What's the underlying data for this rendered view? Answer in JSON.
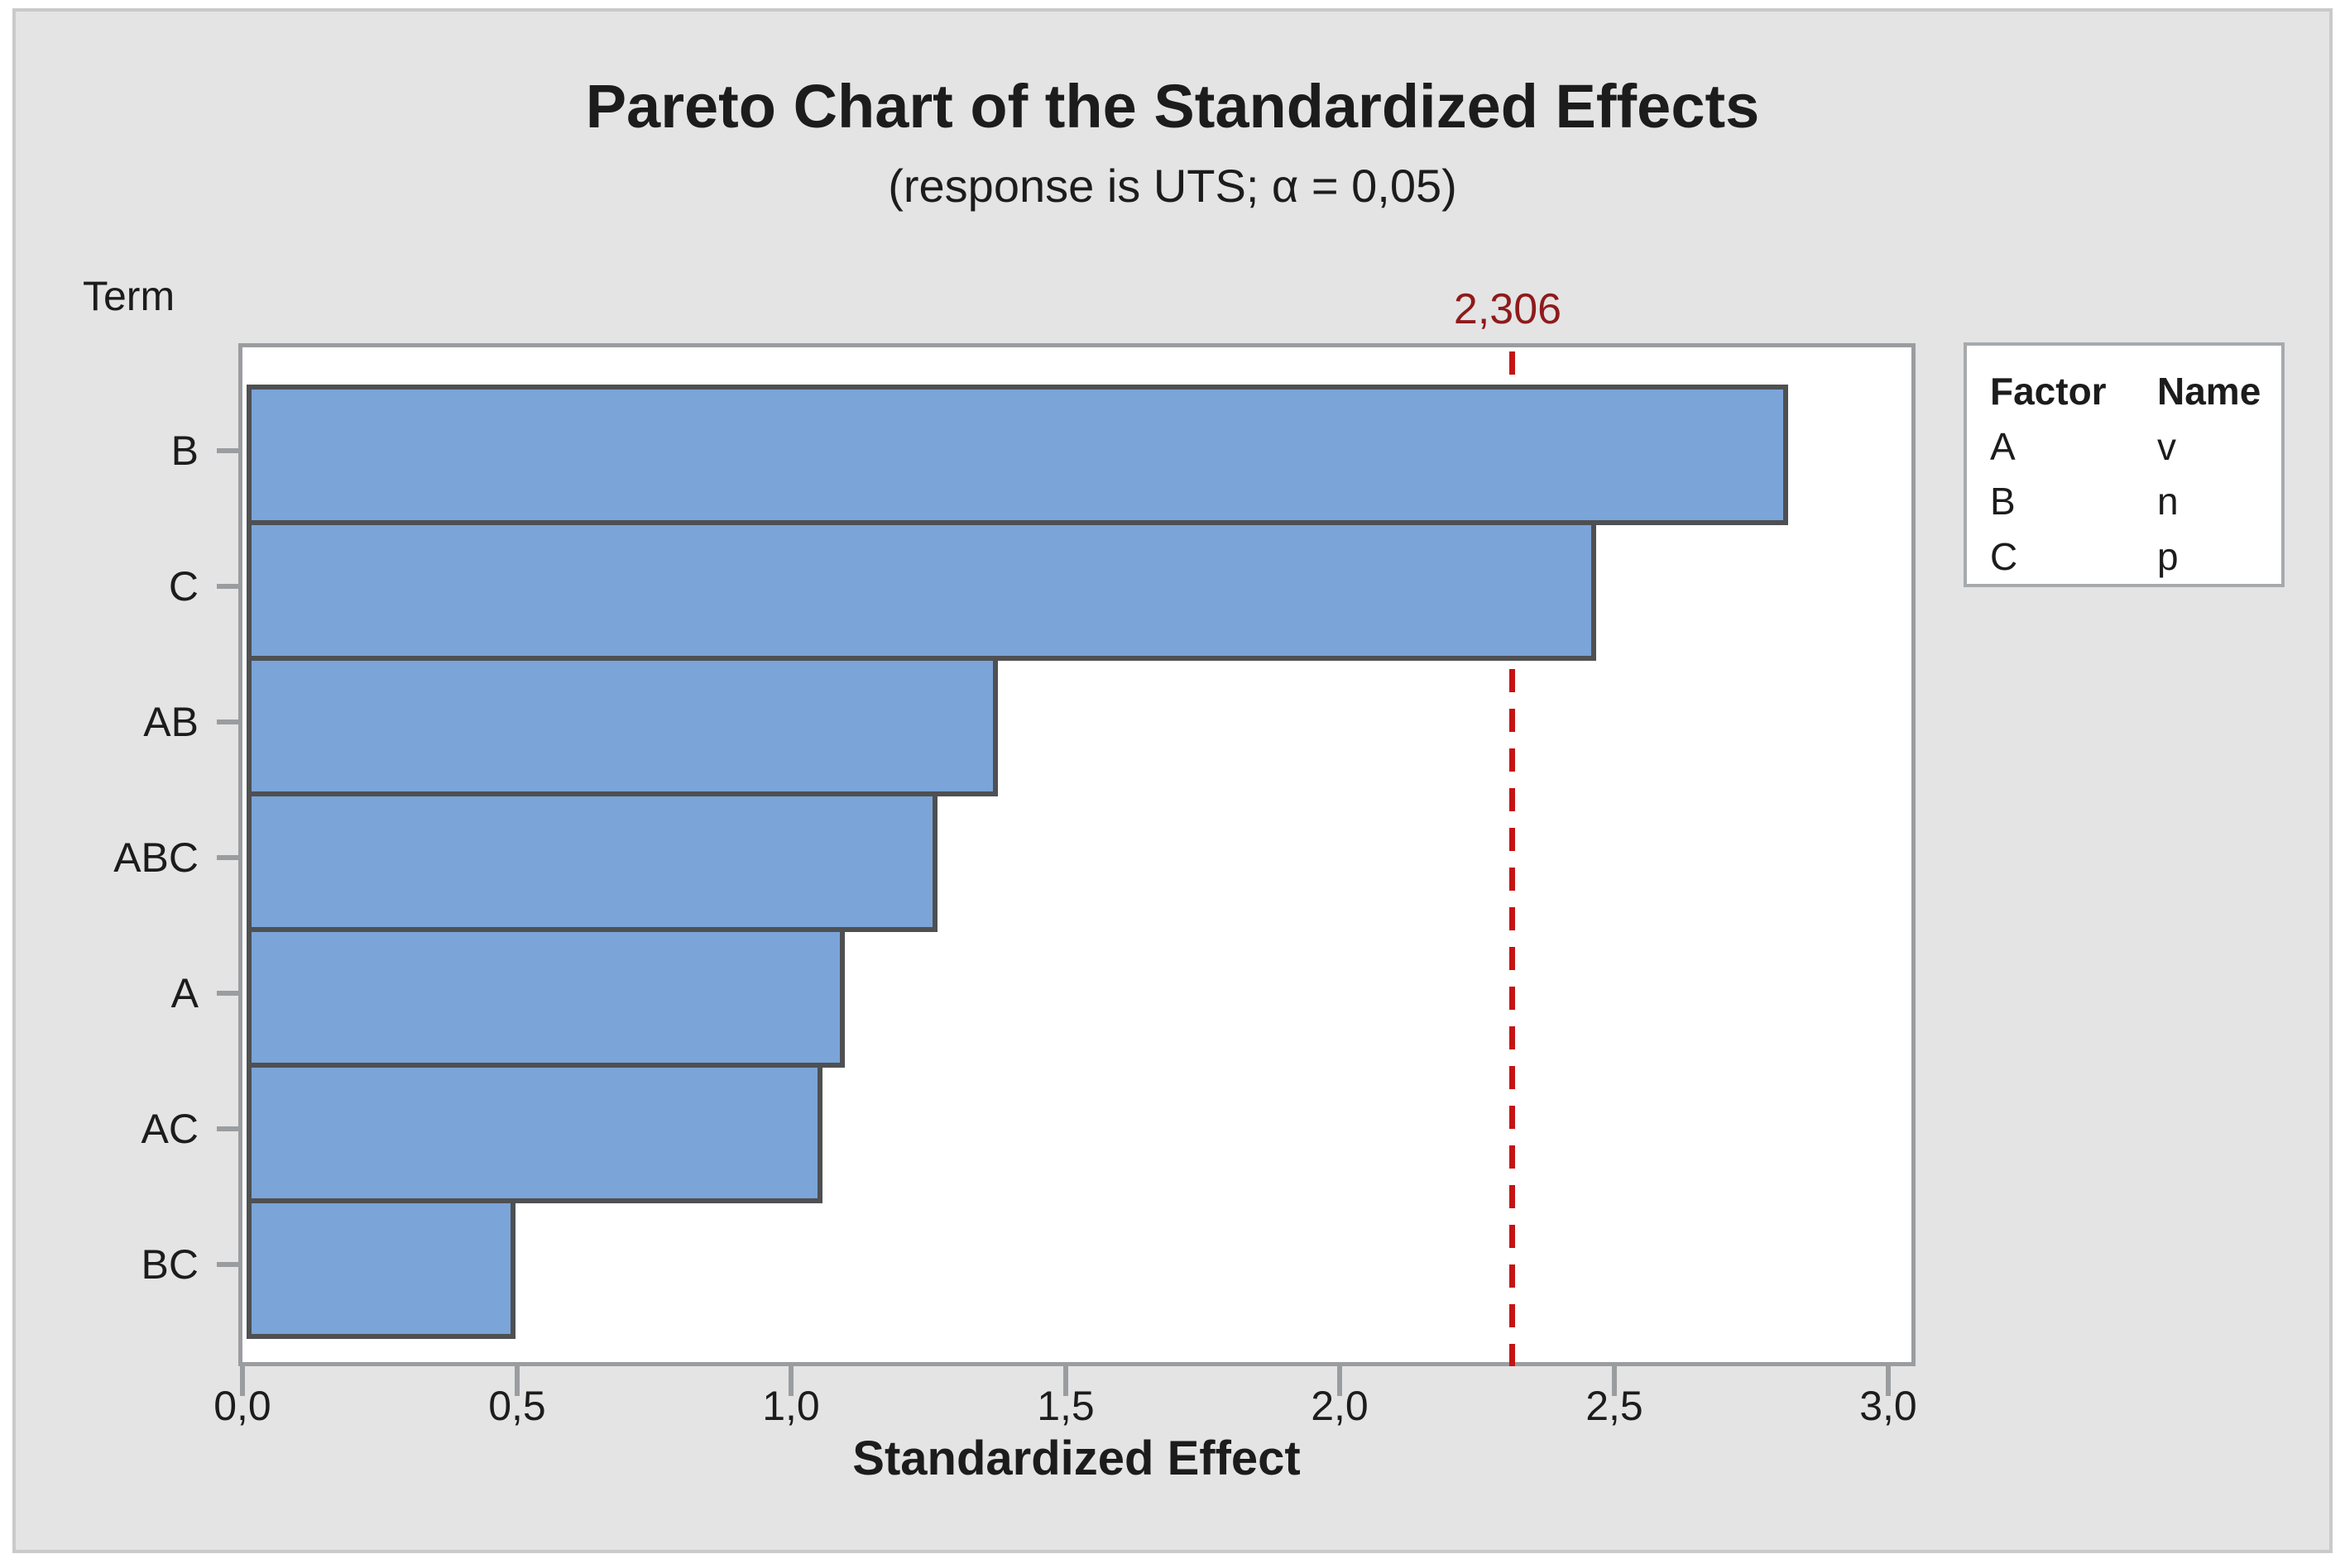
{
  "chart_data": {
    "type": "bar",
    "orientation": "horizontal",
    "title": "Pareto Chart of the Standardized Effects",
    "subtitle": "(response is UTS; α = 0,05)",
    "ylabel": "Term",
    "xlabel": "Standardized Effect",
    "categories": [
      "B",
      "C",
      "AB",
      "ABC",
      "A",
      "AC",
      "BC"
    ],
    "values": [
      2.81,
      2.46,
      1.37,
      1.26,
      1.09,
      1.05,
      0.49
    ],
    "xlim": [
      0,
      3.06
    ],
    "xtick_values": [
      0,
      0.5,
      1,
      1.5,
      2,
      2.5,
      3
    ],
    "xtick_labels": [
      "0,0",
      "0,5",
      "1,0",
      "1,5",
      "2,0",
      "2,5",
      "3,0"
    ],
    "grid": false,
    "reference_line": {
      "value": 2.306,
      "label": "2,306"
    },
    "legend": {
      "position": "right",
      "headers": [
        "Factor",
        "Name"
      ],
      "rows": [
        [
          "A",
          "v"
        ],
        [
          "B",
          "n"
        ],
        [
          "C",
          "p"
        ]
      ]
    },
    "colors": {
      "background": "#e4e4e5",
      "frame_border": "#c9cacb",
      "plot_background": "#ffffff",
      "axis_gray": "#9a9da0",
      "bar_fill": "#7ba4d8",
      "bar_border": "#4e5052",
      "reference_line_red": "#c41414",
      "reference_label_red": "#8f1a1a",
      "legend_border": "#a7aaac",
      "text": "#1c1c1c"
    }
  }
}
